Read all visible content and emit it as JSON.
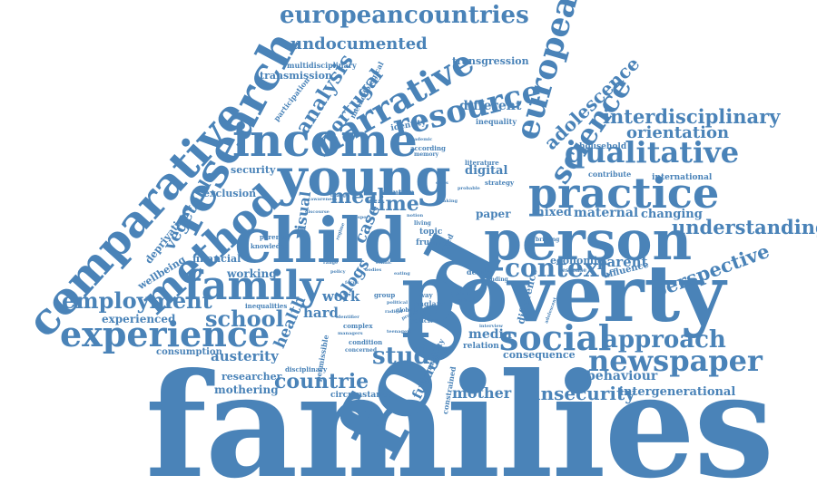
{
  "cloud": {
    "color": "#4a83b8",
    "words": [
      {
        "text": "families",
        "weight": 100
      },
      {
        "text": "food",
        "weight": 95
      },
      {
        "text": "poverty",
        "weight": 80
      },
      {
        "text": "child",
        "weight": 70
      },
      {
        "text": "person",
        "weight": 62
      },
      {
        "text": "young",
        "weight": 58
      },
      {
        "text": "comparative",
        "weight": 55
      },
      {
        "text": "research",
        "weight": 52
      },
      {
        "text": "income",
        "weight": 50
      },
      {
        "text": "practice",
        "weight": 48
      },
      {
        "text": "method",
        "weight": 46
      },
      {
        "text": "family",
        "weight": 44
      },
      {
        "text": "experience",
        "weight": 42
      },
      {
        "text": "social",
        "weight": 40
      },
      {
        "text": "narrative",
        "weight": 38
      },
      {
        "text": "european",
        "weight": 37
      },
      {
        "text": "resource",
        "weight": 36
      },
      {
        "text": "qualitative",
        "weight": 34
      },
      {
        "text": "science",
        "weight": 33
      },
      {
        "text": "newspaper",
        "weight": 32
      },
      {
        "text": "employment",
        "weight": 30
      },
      {
        "text": "context",
        "weight": 30
      },
      {
        "text": "approach",
        "weight": 28
      },
      {
        "text": "study",
        "weight": 28
      },
      {
        "text": "school",
        "weight": 27
      },
      {
        "text": "europeancountries",
        "weight": 26
      },
      {
        "text": "interdisciplinary",
        "weight": 26
      },
      {
        "text": "understanding",
        "weight": 25
      },
      {
        "text": "perspective",
        "weight": 24
      },
      {
        "text": "insecurity",
        "weight": 24
      },
      {
        "text": "countrie",
        "weight": 24
      },
      {
        "text": "adolescence",
        "weight": 23
      },
      {
        "text": "meal",
        "weight": 23
      },
      {
        "text": "time",
        "weight": 23
      },
      {
        "text": "analysis",
        "weight": 22
      },
      {
        "text": "portugal",
        "weight": 22
      },
      {
        "text": "undocumented",
        "weight": 22
      },
      {
        "text": "vegetable",
        "weight": 21
      },
      {
        "text": "orientation",
        "weight": 21
      },
      {
        "text": "mother",
        "weight": 20
      },
      {
        "text": "austerity",
        "weight": 20
      },
      {
        "text": "blogs",
        "weight": 20
      },
      {
        "text": "health",
        "weight": 20
      },
      {
        "text": "visual",
        "weight": 20
      },
      {
        "text": "work",
        "weight": 19
      },
      {
        "text": "hard",
        "weight": 19
      },
      {
        "text": "case",
        "weight": 19
      },
      {
        "text": "mixed",
        "weight": 18
      },
      {
        "text": "maternal",
        "weight": 18
      },
      {
        "text": "parent",
        "weight": 18
      },
      {
        "text": "behaviour",
        "weight": 18
      },
      {
        "text": "intergenerational",
        "weight": 17
      },
      {
        "text": "changing",
        "weight": 17
      },
      {
        "text": "different",
        "weight": 17
      },
      {
        "text": "future",
        "weight": 17
      },
      {
        "text": "media",
        "weight": 17
      },
      {
        "text": "security",
        "weight": 16
      },
      {
        "text": "deprivation",
        "weight": 16
      },
      {
        "text": "wellbeing",
        "weight": 16
      },
      {
        "text": "financial",
        "weight": 16
      },
      {
        "text": "working",
        "weight": 16
      },
      {
        "text": "experienced",
        "weight": 16
      },
      {
        "text": "mothering",
        "weight": 16
      },
      {
        "text": "researcher",
        "weight": 15
      },
      {
        "text": "exclusion",
        "weight": 15
      },
      {
        "text": "economic",
        "weight": 15
      },
      {
        "text": "affluence",
        "weight": 15
      },
      {
        "text": "consequence",
        "weight": 15
      },
      {
        "text": "consumption",
        "weight": 15
      },
      {
        "text": "difference",
        "weight": 15
      },
      {
        "text": "paper",
        "weight": 15
      },
      {
        "text": "transmission",
        "weight": 14
      },
      {
        "text": "transgression",
        "weight": 14
      },
      {
        "text": "participation",
        "weight": 14
      },
      {
        "text": "multidisciplinary",
        "weight": 14
      },
      {
        "text": "methodological",
        "weight": 14
      },
      {
        "text": "identity",
        "weight": 14
      },
      {
        "text": "household",
        "weight": 14
      },
      {
        "text": "international",
        "weight": 14
      },
      {
        "text": "contribute",
        "weight": 14
      },
      {
        "text": "inequality",
        "weight": 14
      },
      {
        "text": "digital",
        "weight": 14
      },
      {
        "text": "strategy",
        "weight": 14
      },
      {
        "text": "literature",
        "weight": 14
      },
      {
        "text": "solution",
        "weight": 13
      },
      {
        "text": "knowledge",
        "weight": 13
      },
      {
        "text": "parental",
        "weight": 13
      },
      {
        "text": "inequalities",
        "weight": 13
      },
      {
        "text": "disciplinary",
        "weight": 13
      },
      {
        "text": "circumstance",
        "weight": 13
      },
      {
        "text": "constrained",
        "weight": 13
      },
      {
        "text": "normativity",
        "weight": 13
      },
      {
        "text": "permissible",
        "weight": 13
      },
      {
        "text": "thinking",
        "weight": 13
      },
      {
        "text": "relation",
        "weight": 13
      },
      {
        "text": "condition",
        "weight": 13
      },
      {
        "text": "concerned",
        "weight": 12
      },
      {
        "text": "england",
        "weight": 12
      },
      {
        "text": "group",
        "weight": 12
      },
      {
        "text": "topic",
        "weight": 12
      },
      {
        "text": "fruit",
        "weight": 12
      },
      {
        "text": "type",
        "weight": 12
      },
      {
        "text": "living",
        "weight": 12
      },
      {
        "text": "design",
        "weight": 12
      },
      {
        "text": "finding",
        "weight": 12
      },
      {
        "text": "response",
        "weight": 12
      },
      {
        "text": "briefing",
        "weight": 12
      },
      {
        "text": "according",
        "weight": 12
      },
      {
        "text": "memory",
        "weight": 12
      },
      {
        "text": "academic",
        "weight": 12
      },
      {
        "text": "change",
        "weight": 12
      },
      {
        "text": "discourse",
        "weight": 12
      },
      {
        "text": "complex",
        "weight": 12
      },
      {
        "text": "policies",
        "weight": 12
      },
      {
        "text": "way",
        "weight": 12
      },
      {
        "text": "global",
        "weight": 12
      },
      {
        "text": "project",
        "weight": 12
      },
      {
        "text": "radical",
        "weight": 12
      },
      {
        "text": "interview",
        "weight": 12
      },
      {
        "text": "adolescent",
        "weight": 12
      },
      {
        "text": "guide",
        "weight": 12
      },
      {
        "text": "friend",
        "weight": 12
      },
      {
        "text": "taking",
        "weight": 12
      },
      {
        "text": "probable",
        "weight": 12
      },
      {
        "text": "class",
        "weight": 12
      },
      {
        "text": "political",
        "weight": 12
      },
      {
        "text": "policy",
        "weight": 12
      },
      {
        "text": "focus",
        "weight": 12
      },
      {
        "text": "aged",
        "weight": 12
      },
      {
        "text": "managers",
        "weight": 12
      },
      {
        "text": "identifier",
        "weight": 12
      },
      {
        "text": "teenagers",
        "weight": 12
      },
      {
        "text": "notion",
        "weight": 12
      },
      {
        "text": "eating",
        "weight": 12
      },
      {
        "text": "range",
        "weight": 12
      },
      {
        "text": "regime",
        "weight": 12
      },
      {
        "text": "awareness",
        "weight": 12
      },
      {
        "text": "sport",
        "weight": 12
      },
      {
        "text": "bodies",
        "weight": 12
      },
      {
        "text": "ethnic",
        "weight": 12
      }
    ]
  }
}
